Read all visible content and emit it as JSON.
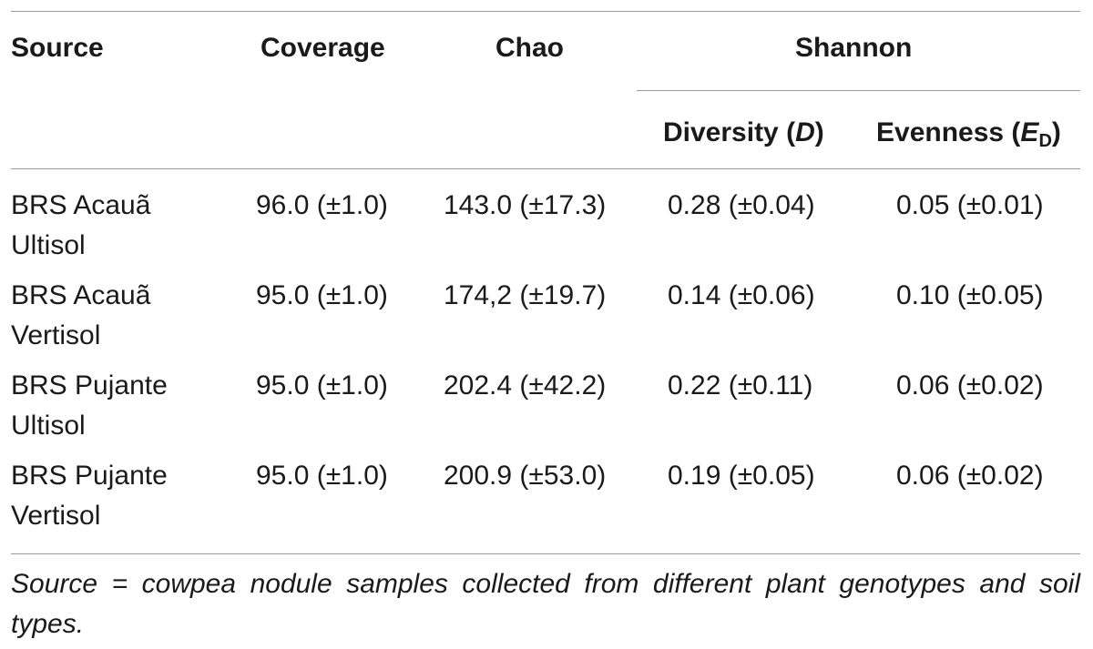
{
  "table": {
    "headers": {
      "source": "Source",
      "coverage": "Coverage",
      "chao": "Chao",
      "shannon": "Shannon",
      "diversity_text": "Diversity (",
      "diversity_var": "D",
      "diversity_close": ")",
      "evenness_text": "Evenness (",
      "evenness_var": "E",
      "evenness_sub": "D",
      "evenness_close": ")"
    },
    "rows": [
      {
        "source_line1": "BRS Acauã",
        "source_line2": "Ultisol",
        "coverage": "96.0 (±1.0)",
        "chao": "143.0 (±17.3)",
        "diversity": "0.28 (±0.04)",
        "evenness": "0.05 (±0.01)"
      },
      {
        "source_line1": "BRS Acauã",
        "source_line2": "Vertisol",
        "coverage": "95.0 (±1.0)",
        "chao": "174,2 (±19.7)",
        "diversity": "0.14 (±0.06)",
        "evenness": "0.10 (±0.05)"
      },
      {
        "source_line1": "BRS Pujante",
        "source_line2": "Ultisol",
        "coverage": "95.0 (±1.0)",
        "chao": "202.4 (±42.2)",
        "diversity": "0.22 (±0.11)",
        "evenness": "0.06 (±0.02)"
      },
      {
        "source_line1": "BRS Pujante",
        "source_line2": "Vertisol",
        "coverage": "95.0 (±1.0)",
        "chao": "200.9 (±53.0)",
        "diversity": "0.19 (±0.05)",
        "evenness": "0.06 (±0.02)"
      }
    ],
    "footnote": "Source = cowpea nodule samples collected from different plant genotypes and soil types."
  }
}
